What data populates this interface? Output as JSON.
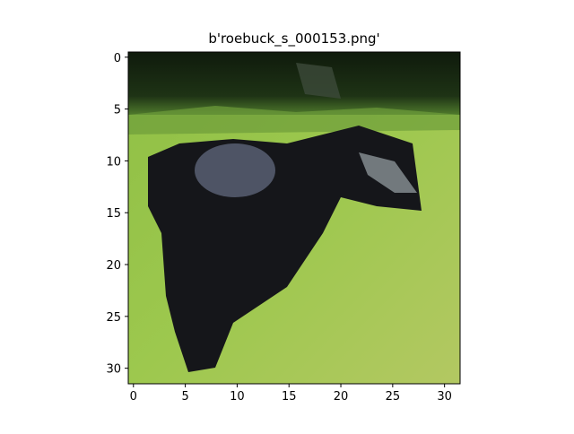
{
  "chart_data": {
    "type": "image",
    "title": "b'roebuck_s_000153.png'",
    "xlim": [
      -0.5,
      31.5
    ],
    "ylim": [
      31.5,
      -0.5
    ],
    "xticks": [
      0,
      5,
      10,
      15,
      20,
      25,
      30
    ],
    "yticks": [
      0,
      5,
      10,
      15,
      20,
      25,
      30
    ]
  }
}
